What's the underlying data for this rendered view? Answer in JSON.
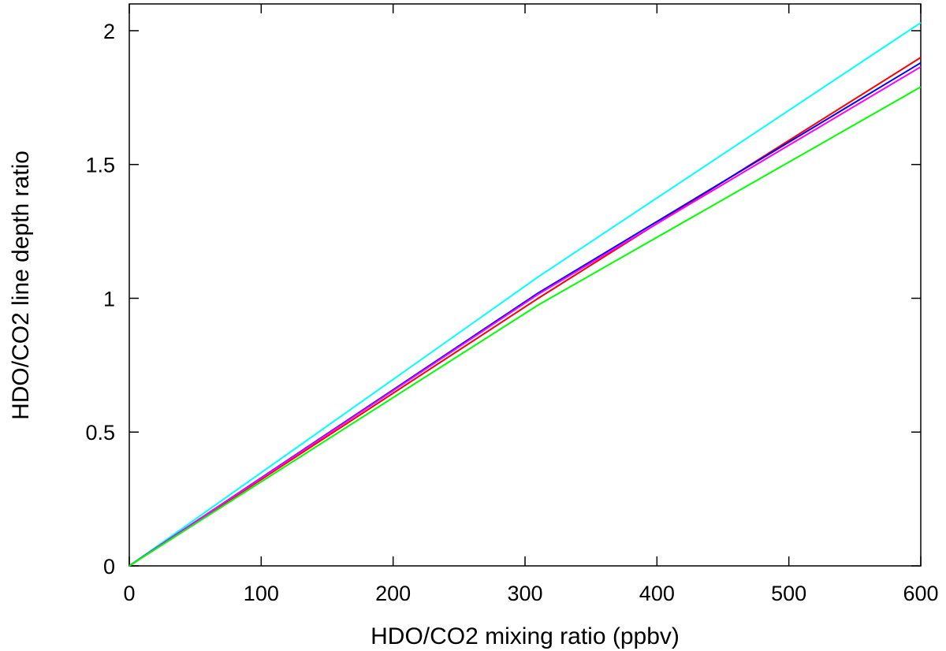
{
  "chart_data": {
    "type": "line",
    "title": "",
    "xlabel": "HDO/CO2 mixing ratio (ppbv)",
    "ylabel": "HDO/CO2 line depth ratio",
    "xlim": [
      0,
      600
    ],
    "ylim": [
      0,
      2.1
    ],
    "x_ticks": [
      0,
      100,
      200,
      300,
      400,
      500,
      600
    ],
    "x_tick_labels": [
      "0",
      "100",
      "200",
      "300",
      "400",
      "500",
      "600"
    ],
    "y_ticks": [
      0,
      0.5,
      1,
      1.5,
      2
    ],
    "y_tick_labels": [
      "0",
      "0.5",
      "1",
      "1.5",
      "2"
    ],
    "grid": false,
    "legend": "none",
    "series": [
      {
        "color": "#00ffff",
        "x": [
          0,
          310,
          600
        ],
        "y": [
          0,
          1.08,
          2.03
        ]
      },
      {
        "color": "#ff0000",
        "x": [
          0,
          310,
          600
        ],
        "y": [
          0,
          1.0,
          1.9
        ]
      },
      {
        "color": "#0000ff",
        "x": [
          0,
          310,
          600
        ],
        "y": [
          0,
          1.02,
          1.88
        ]
      },
      {
        "color": "#ff00ff",
        "x": [
          0,
          310,
          600
        ],
        "y": [
          0,
          1.015,
          1.865
        ]
      },
      {
        "color": "#00ff00",
        "x": [
          0,
          310,
          600
        ],
        "y": [
          0,
          0.975,
          1.79
        ]
      }
    ]
  }
}
